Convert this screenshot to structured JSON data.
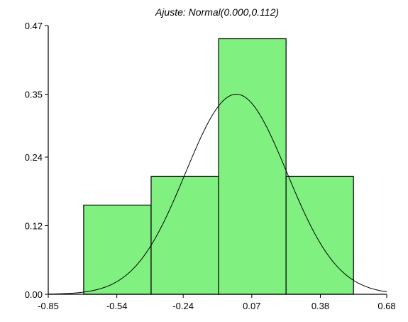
{
  "chart_data": {
    "type": "bar",
    "title": "Ajuste: Normal(0.000,0.112)",
    "xlabel": "",
    "ylabel": "",
    "xlim": [
      -0.85,
      0.68
    ],
    "ylim": [
      0,
      0.47
    ],
    "x_ticks": [
      "-0.85",
      "-0.54",
      "-0.24",
      "0.07",
      "0.38",
      "0.68"
    ],
    "y_ticks": [
      "0.00",
      "0.12",
      "0.24",
      "0.35",
      "0.47"
    ],
    "bins": [
      {
        "x0": -0.69,
        "x1": -0.385,
        "value": 0.156
      },
      {
        "x0": -0.385,
        "x1": -0.08,
        "value": 0.206
      },
      {
        "x0": -0.08,
        "x1": 0.225,
        "value": 0.447
      },
      {
        "x0": 0.225,
        "x1": 0.53,
        "value": 0.206
      }
    ],
    "fit_curve": {
      "distribution": "Normal",
      "mean": 0.0,
      "sd": 0.112,
      "peak_density": 0.35
    },
    "bar_color": "#80f080",
    "curve_color": "#000000",
    "grid": false
  }
}
